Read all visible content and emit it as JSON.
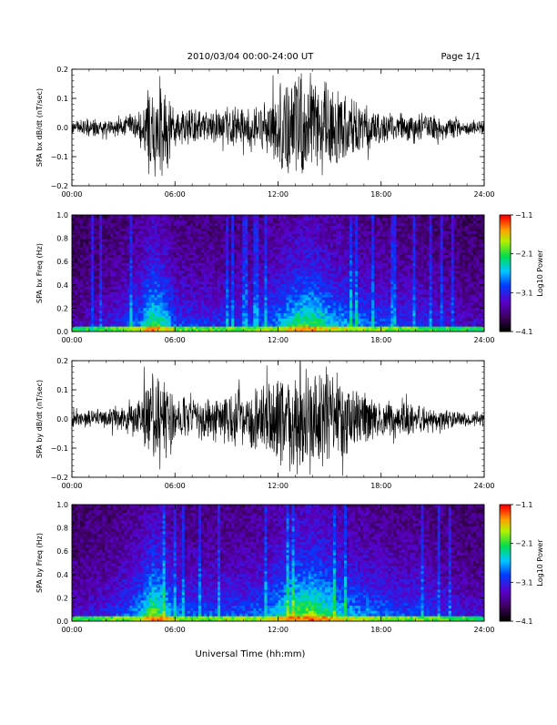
{
  "header": {
    "title": "2010/03/04  00:00-24:00 UT",
    "page": "Page 1/1"
  },
  "footer": {
    "xlabel": "Universal Time (hh:mm)"
  },
  "chart_data": [
    {
      "type": "line",
      "ylabel": "SPA bx dB/dt (nT/sec)",
      "xlim_hours": [
        0,
        24
      ],
      "ylim": [
        -0.2,
        0.2
      ],
      "y_ticks": [
        -0.2,
        -0.1,
        0.0,
        0.1,
        0.2
      ],
      "y_tick_labels": [
        "−0.2",
        "−0.1",
        "0.0",
        "0.1",
        "0.2"
      ],
      "x_tick_labels": [
        "00:00",
        "06:00",
        "12:00",
        "18:00",
        "24:00"
      ],
      "envelope": {
        "hours": [
          0,
          1,
          2,
          3,
          4,
          4.5,
          5,
          5.5,
          6,
          7,
          8,
          9,
          10,
          11,
          12,
          13,
          14,
          15,
          16,
          17,
          18,
          19,
          20,
          21,
          22,
          23,
          24
        ],
        "amplitude": [
          0.03,
          0.04,
          0.03,
          0.04,
          0.06,
          0.2,
          0.2,
          0.2,
          0.08,
          0.07,
          0.06,
          0.08,
          0.07,
          0.09,
          0.15,
          0.2,
          0.2,
          0.17,
          0.13,
          0.1,
          0.06,
          0.06,
          0.06,
          0.05,
          0.04,
          0.03,
          0.03
        ]
      }
    },
    {
      "type": "heatmap",
      "ylabel": "SPA bx Freq (Hz)",
      "xlim_hours": [
        0,
        24
      ],
      "ylim": [
        0.0,
        1.0
      ],
      "y_ticks": [
        0.0,
        0.2,
        0.4,
        0.6,
        0.8,
        1.0
      ],
      "y_tick_labels": [
        "0.0",
        "0.2",
        "0.4",
        "0.6",
        "0.8",
        "1.0"
      ],
      "x_tick_labels": [
        "00:00",
        "06:00",
        "12:00",
        "18:00",
        "24:00"
      ],
      "colorbar": {
        "label": "Log10 Power",
        "range": [
          -4.1,
          -1.1
        ],
        "tick_labels": [
          "−1.1",
          "−2.1",
          "−3.1",
          "−4.1"
        ]
      },
      "activity": {
        "hours": [
          0,
          1,
          2,
          3,
          4,
          4.7,
          5.5,
          6,
          7,
          8,
          9,
          10,
          11,
          12,
          13,
          14,
          15,
          16,
          17,
          18,
          19,
          20,
          21,
          22,
          23,
          24
        ],
        "intensity": [
          0.15,
          0.2,
          0.25,
          0.35,
          0.5,
          0.8,
          0.6,
          0.4,
          0.35,
          0.35,
          0.35,
          0.35,
          0.4,
          0.5,
          0.7,
          0.75,
          0.6,
          0.5,
          0.45,
          0.4,
          0.35,
          0.35,
          0.3,
          0.25,
          0.2,
          0.2
        ]
      }
    },
    {
      "type": "line",
      "ylabel": "SPA by dB/dt (nT/sec)",
      "xlim_hours": [
        0,
        24
      ],
      "ylim": [
        -0.2,
        0.2
      ],
      "y_ticks": [
        -0.2,
        -0.1,
        0.0,
        0.1,
        0.2
      ],
      "y_tick_labels": [
        "−0.2",
        "−0.1",
        "0.0",
        "0.1",
        "0.2"
      ],
      "x_tick_labels": [
        "00:00",
        "06:00",
        "12:00",
        "18:00",
        "24:00"
      ],
      "envelope": {
        "hours": [
          0,
          1,
          2,
          3,
          4,
          4.5,
          5,
          5.5,
          6,
          7,
          8,
          9,
          10,
          11,
          12,
          13,
          14,
          15,
          16,
          17,
          18,
          19,
          20,
          21,
          22,
          23,
          24
        ],
        "amplitude": [
          0.03,
          0.04,
          0.04,
          0.05,
          0.09,
          0.2,
          0.2,
          0.2,
          0.08,
          0.07,
          0.08,
          0.1,
          0.1,
          0.12,
          0.17,
          0.2,
          0.2,
          0.19,
          0.14,
          0.1,
          0.07,
          0.07,
          0.06,
          0.05,
          0.04,
          0.03,
          0.03
        ]
      }
    },
    {
      "type": "heatmap",
      "ylabel": "SPA by Freq (Hz)",
      "xlim_hours": [
        0,
        24
      ],
      "ylim": [
        0.0,
        1.0
      ],
      "y_ticks": [
        0.0,
        0.2,
        0.4,
        0.6,
        0.8,
        1.0
      ],
      "y_tick_labels": [
        "0.0",
        "0.2",
        "0.4",
        "0.6",
        "0.8",
        "1.0"
      ],
      "x_tick_labels": [
        "00:00",
        "06:00",
        "12:00",
        "18:00",
        "24:00"
      ],
      "colorbar": {
        "label": "Log10 Power",
        "range": [
          -4.1,
          -1.1
        ],
        "tick_labels": [
          "−1.1",
          "−2.1",
          "−3.1",
          "−4.1"
        ]
      },
      "activity": {
        "hours": [
          0,
          1,
          2,
          3,
          4,
          4.7,
          5.5,
          6,
          7,
          8,
          9,
          10,
          11,
          12,
          13,
          14,
          15,
          16,
          17,
          18,
          19,
          20,
          21,
          22,
          23,
          24
        ],
        "intensity": [
          0.2,
          0.25,
          0.3,
          0.4,
          0.55,
          0.85,
          0.65,
          0.45,
          0.4,
          0.4,
          0.4,
          0.4,
          0.45,
          0.6,
          0.8,
          0.85,
          0.7,
          0.55,
          0.5,
          0.45,
          0.4,
          0.4,
          0.35,
          0.3,
          0.25,
          0.25
        ]
      }
    }
  ]
}
